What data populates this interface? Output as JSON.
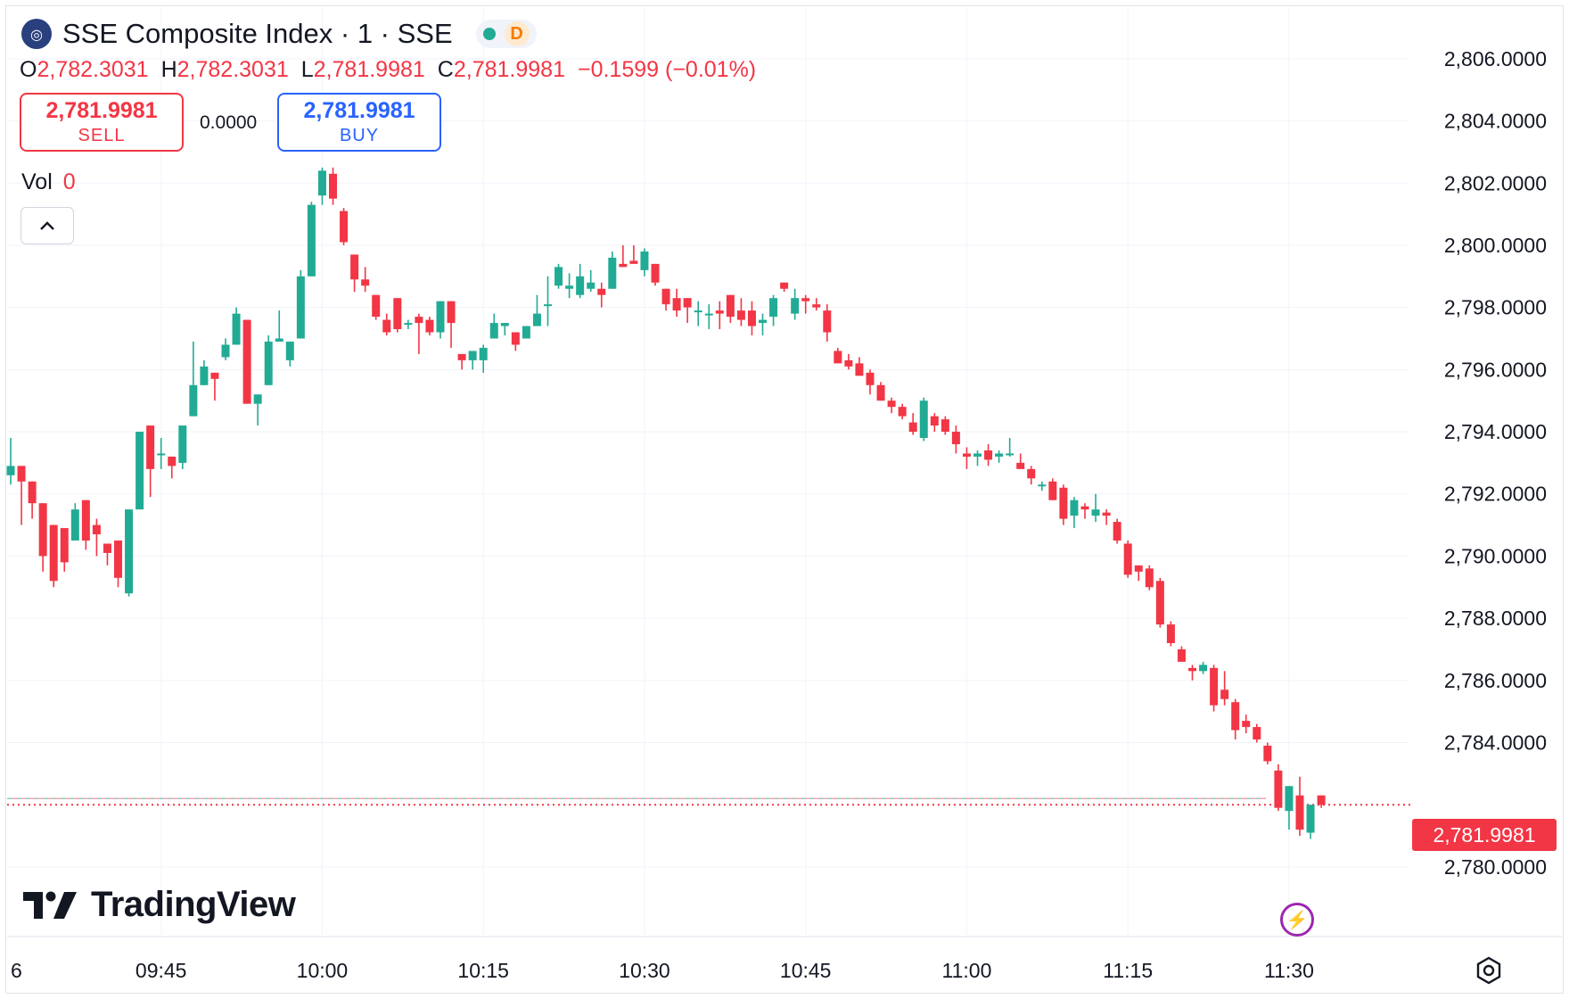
{
  "header": {
    "title": "SSE Composite Index · 1 · SSE",
    "logo_icon": "globe-icon",
    "delay_badge": "D",
    "status_color": "#22ab94"
  },
  "ohlc": {
    "open_label": "O",
    "open": "2,782.3031",
    "high_label": "H",
    "high": "2,782.3031",
    "low_label": "L",
    "low": "2,781.9981",
    "close_label": "C",
    "close": "2,781.9981",
    "change": "−0.1599 (−0.01%)"
  },
  "trade": {
    "sell_price": "2,781.9981",
    "sell_label": "SELL",
    "spread": "0.0000",
    "buy_price": "2,781.9981",
    "buy_label": "BUY"
  },
  "volume": {
    "label": "Vol",
    "value": "0"
  },
  "branding": {
    "name": "TradingView"
  },
  "colors": {
    "up": "#22ab94",
    "down": "#f23645",
    "grid": "#f0f3fa"
  },
  "chart_data": {
    "type": "candlestick",
    "current_price": 2781.9981,
    "current_price_label": "2,781.9981",
    "y_ticks": [
      "2,806.0000",
      "2,804.0000",
      "2,802.0000",
      "2,800.0000",
      "2,798.0000",
      "2,796.0000",
      "2,794.0000",
      "2,792.0000",
      "2,790.0000",
      "2,788.0000",
      "2,786.0000",
      "2,784.0000",
      "2,780.0000"
    ],
    "y_tick_values": [
      2806,
      2804,
      2802,
      2800,
      2798,
      2796,
      2794,
      2792,
      2790,
      2788,
      2786,
      2784,
      2780
    ],
    "x_ticks": [
      "6",
      "09:45",
      "10:00",
      "10:15",
      "10:30",
      "10:45",
      "11:00",
      "11:15",
      "11:30"
    ],
    "ylim": [
      2779.05,
      2806.8
    ],
    "candles": [
      {
        "t": "09:31",
        "o": 2792.6,
        "h": 2793.8,
        "l": 2792.3,
        "c": 2792.9
      },
      {
        "t": "09:32",
        "o": 2792.9,
        "h": 2792.9,
        "l": 2791.0,
        "c": 2792.4
      },
      {
        "t": "09:33",
        "o": 2792.4,
        "h": 2792.4,
        "l": 2791.2,
        "c": 2791.7
      },
      {
        "t": "09:34",
        "o": 2791.7,
        "h": 2791.7,
        "l": 2789.5,
        "c": 2790.0
      },
      {
        "t": "09:35",
        "o": 2791.0,
        "h": 2791.0,
        "l": 2789.0,
        "c": 2789.2
      },
      {
        "t": "09:36",
        "o": 2790.9,
        "h": 2790.9,
        "l": 2789.5,
        "c": 2789.8
      },
      {
        "t": "09:37",
        "o": 2790.5,
        "h": 2791.7,
        "l": 2790.5,
        "c": 2791.5
      },
      {
        "t": "09:38",
        "o": 2791.8,
        "h": 2791.8,
        "l": 2790.2,
        "c": 2790.5
      },
      {
        "t": "09:39",
        "o": 2791.0,
        "h": 2791.2,
        "l": 2790.0,
        "c": 2790.7
      },
      {
        "t": "09:40",
        "o": 2790.4,
        "h": 2790.4,
        "l": 2789.7,
        "c": 2790.1
      },
      {
        "t": "09:41",
        "o": 2790.5,
        "h": 2790.5,
        "l": 2789.0,
        "c": 2789.3
      },
      {
        "t": "09:42",
        "o": 2788.8,
        "h": 2791.5,
        "l": 2788.7,
        "c": 2791.5
      },
      {
        "t": "09:43",
        "o": 2791.5,
        "h": 2794.0,
        "l": 2791.5,
        "c": 2794.0
      },
      {
        "t": "09:44",
        "o": 2794.2,
        "h": 2794.2,
        "l": 2791.9,
        "c": 2792.8
      },
      {
        "t": "09:45",
        "o": 2793.3,
        "h": 2793.8,
        "l": 2792.8,
        "c": 2793.3
      },
      {
        "t": "09:46",
        "o": 2793.2,
        "h": 2793.2,
        "l": 2792.5,
        "c": 2792.9
      },
      {
        "t": "09:47",
        "o": 2793.0,
        "h": 2794.2,
        "l": 2792.8,
        "c": 2794.2
      },
      {
        "t": "09:48",
        "o": 2794.5,
        "h": 2796.9,
        "l": 2794.5,
        "c": 2795.5
      },
      {
        "t": "09:49",
        "o": 2795.5,
        "h": 2796.3,
        "l": 2795.5,
        "c": 2796.1
      },
      {
        "t": "09:50",
        "o": 2795.9,
        "h": 2795.9,
        "l": 2795.0,
        "c": 2795.7
      },
      {
        "t": "09:51",
        "o": 2796.4,
        "h": 2797.0,
        "l": 2796.3,
        "c": 2796.8
      },
      {
        "t": "09:52",
        "o": 2796.8,
        "h": 2798.0,
        "l": 2796.8,
        "c": 2797.8
      },
      {
        "t": "09:53",
        "o": 2797.6,
        "h": 2797.6,
        "l": 2794.9,
        "c": 2794.9
      },
      {
        "t": "09:54",
        "o": 2794.9,
        "h": 2795.2,
        "l": 2794.2,
        "c": 2795.2
      },
      {
        "t": "09:55",
        "o": 2795.5,
        "h": 2797.1,
        "l": 2795.5,
        "c": 2796.9
      },
      {
        "t": "09:56",
        "o": 2796.9,
        "h": 2797.9,
        "l": 2796.9,
        "c": 2797.0
      },
      {
        "t": "09:57",
        "o": 2796.3,
        "h": 2796.9,
        "l": 2796.1,
        "c": 2796.9
      },
      {
        "t": "09:58",
        "o": 2797.0,
        "h": 2799.2,
        "l": 2797.0,
        "c": 2799.0
      },
      {
        "t": "09:59",
        "o": 2799.0,
        "h": 2801.4,
        "l": 2799.0,
        "c": 2801.3
      },
      {
        "t": "10:00",
        "o": 2801.6,
        "h": 2802.5,
        "l": 2801.3,
        "c": 2802.4
      },
      {
        "t": "10:01",
        "o": 2802.3,
        "h": 2802.5,
        "l": 2801.3,
        "c": 2801.5
      },
      {
        "t": "10:02",
        "o": 2801.1,
        "h": 2801.2,
        "l": 2800.0,
        "c": 2800.1
      },
      {
        "t": "10:03",
        "o": 2799.7,
        "h": 2799.7,
        "l": 2798.5,
        "c": 2798.9
      },
      {
        "t": "10:04",
        "o": 2798.9,
        "h": 2799.3,
        "l": 2798.5,
        "c": 2798.7
      },
      {
        "t": "10:05",
        "o": 2798.4,
        "h": 2798.4,
        "l": 2797.6,
        "c": 2797.7
      },
      {
        "t": "10:06",
        "o": 2797.6,
        "h": 2797.8,
        "l": 2797.1,
        "c": 2797.2
      },
      {
        "t": "10:07",
        "o": 2798.3,
        "h": 2798.3,
        "l": 2797.2,
        "c": 2797.3
      },
      {
        "t": "10:08",
        "o": 2797.5,
        "h": 2797.6,
        "l": 2797.3,
        "c": 2797.5
      },
      {
        "t": "10:09",
        "o": 2797.7,
        "h": 2797.8,
        "l": 2796.5,
        "c": 2797.5
      },
      {
        "t": "10:10",
        "o": 2797.6,
        "h": 2797.7,
        "l": 2797.1,
        "c": 2797.2
      },
      {
        "t": "10:11",
        "o": 2797.2,
        "h": 2798.2,
        "l": 2797.0,
        "c": 2798.2
      },
      {
        "t": "10:12",
        "o": 2798.2,
        "h": 2798.2,
        "l": 2796.7,
        "c": 2797.5
      },
      {
        "t": "10:13",
        "o": 2796.5,
        "h": 2796.5,
        "l": 2796.0,
        "c": 2796.3
      },
      {
        "t": "10:14",
        "o": 2796.3,
        "h": 2796.5,
        "l": 2796.0,
        "c": 2796.6
      },
      {
        "t": "10:15",
        "o": 2796.3,
        "h": 2796.8,
        "l": 2795.9,
        "c": 2796.7
      },
      {
        "t": "10:16",
        "o": 2797.0,
        "h": 2797.8,
        "l": 2797.0,
        "c": 2797.5
      },
      {
        "t": "10:17",
        "o": 2797.4,
        "h": 2797.5,
        "l": 2797.1,
        "c": 2797.5
      },
      {
        "t": "10:18",
        "o": 2797.2,
        "h": 2797.2,
        "l": 2796.6,
        "c": 2796.8
      },
      {
        "t": "10:19",
        "o": 2797.0,
        "h": 2797.4,
        "l": 2797.0,
        "c": 2797.4
      },
      {
        "t": "10:20",
        "o": 2797.4,
        "h": 2798.4,
        "l": 2797.4,
        "c": 2797.8
      },
      {
        "t": "10:21",
        "o": 2798.1,
        "h": 2799.0,
        "l": 2797.4,
        "c": 2798.1
      },
      {
        "t": "10:22",
        "o": 2798.7,
        "h": 2799.4,
        "l": 2798.6,
        "c": 2799.3
      },
      {
        "t": "10:23",
        "o": 2798.6,
        "h": 2799.1,
        "l": 2798.3,
        "c": 2798.7
      },
      {
        "t": "10:24",
        "o": 2798.4,
        "h": 2799.4,
        "l": 2798.3,
        "c": 2799.0
      },
      {
        "t": "10:25",
        "o": 2798.6,
        "h": 2799.2,
        "l": 2798.5,
        "c": 2798.8
      },
      {
        "t": "10:26",
        "o": 2798.6,
        "h": 2798.8,
        "l": 2798.0,
        "c": 2798.4
      },
      {
        "t": "10:27",
        "o": 2798.6,
        "h": 2799.8,
        "l": 2798.6,
        "c": 2799.6
      },
      {
        "t": "10:28",
        "o": 2799.4,
        "h": 2800.0,
        "l": 2799.3,
        "c": 2799.3
      },
      {
        "t": "10:29",
        "o": 2799.5,
        "h": 2800.0,
        "l": 2799.5,
        "c": 2799.4
      },
      {
        "t": "10:30",
        "o": 2799.2,
        "h": 2799.9,
        "l": 2799.0,
        "c": 2799.8
      },
      {
        "t": "10:31",
        "o": 2799.4,
        "h": 2799.4,
        "l": 2798.7,
        "c": 2798.8
      },
      {
        "t": "10:32",
        "o": 2798.6,
        "h": 2798.6,
        "l": 2797.9,
        "c": 2798.1
      },
      {
        "t": "10:33",
        "o": 2798.3,
        "h": 2798.6,
        "l": 2797.7,
        "c": 2797.9
      },
      {
        "t": "10:34",
        "o": 2798.3,
        "h": 2798.3,
        "l": 2797.5,
        "c": 2798.0
      },
      {
        "t": "10:35",
        "o": 2797.9,
        "h": 2798.2,
        "l": 2797.4,
        "c": 2797.9
      },
      {
        "t": "10:36",
        "o": 2797.8,
        "h": 2798.1,
        "l": 2797.3,
        "c": 2797.8
      },
      {
        "t": "10:37",
        "o": 2797.9,
        "h": 2798.2,
        "l": 2797.3,
        "c": 2797.8
      },
      {
        "t": "10:38",
        "o": 2798.4,
        "h": 2798.4,
        "l": 2797.5,
        "c": 2797.7
      },
      {
        "t": "10:39",
        "o": 2797.9,
        "h": 2798.3,
        "l": 2797.4,
        "c": 2797.6
      },
      {
        "t": "10:40",
        "o": 2797.9,
        "h": 2798.2,
        "l": 2797.1,
        "c": 2797.4
      },
      {
        "t": "10:41",
        "o": 2797.5,
        "h": 2797.8,
        "l": 2797.1,
        "c": 2797.6
      },
      {
        "t": "10:42",
        "o": 2797.7,
        "h": 2798.4,
        "l": 2797.4,
        "c": 2798.3
      },
      {
        "t": "10:43",
        "o": 2798.8,
        "h": 2798.8,
        "l": 2798.5,
        "c": 2798.6
      },
      {
        "t": "10:44",
        "o": 2797.8,
        "h": 2798.6,
        "l": 2797.6,
        "c": 2798.3
      },
      {
        "t": "10:45",
        "o": 2798.3,
        "h": 2798.4,
        "l": 2797.8,
        "c": 2798.2
      },
      {
        "t": "10:46",
        "o": 2798.1,
        "h": 2798.3,
        "l": 2797.9,
        "c": 2798.0
      },
      {
        "t": "10:47",
        "o": 2797.9,
        "h": 2798.1,
        "l": 2796.9,
        "c": 2797.2
      },
      {
        "t": "10:48",
        "o": 2796.6,
        "h": 2796.7,
        "l": 2796.2,
        "c": 2796.2
      },
      {
        "t": "10:49",
        "o": 2796.3,
        "h": 2796.5,
        "l": 2796.0,
        "c": 2796.1
      },
      {
        "t": "10:50",
        "o": 2796.2,
        "h": 2796.4,
        "l": 2795.9,
        "c": 2795.8
      },
      {
        "t": "10:51",
        "o": 2795.9,
        "h": 2796.0,
        "l": 2795.2,
        "c": 2795.5
      },
      {
        "t": "10:52",
        "o": 2795.5,
        "h": 2795.6,
        "l": 2795.0,
        "c": 2795.0
      },
      {
        "t": "10:53",
        "o": 2795.0,
        "h": 2795.1,
        "l": 2794.6,
        "c": 2794.8
      },
      {
        "t": "10:54",
        "o": 2794.8,
        "h": 2794.9,
        "l": 2794.4,
        "c": 2794.5
      },
      {
        "t": "10:55",
        "o": 2794.3,
        "h": 2794.6,
        "l": 2793.9,
        "c": 2794.0
      },
      {
        "t": "10:56",
        "o": 2793.8,
        "h": 2795.1,
        "l": 2793.7,
        "c": 2795.0
      },
      {
        "t": "10:57",
        "o": 2794.5,
        "h": 2794.6,
        "l": 2794.0,
        "c": 2794.2
      },
      {
        "t": "10:58",
        "o": 2794.4,
        "h": 2794.5,
        "l": 2793.9,
        "c": 2794.0
      },
      {
        "t": "10:59",
        "o": 2794.0,
        "h": 2794.2,
        "l": 2793.3,
        "c": 2793.6
      },
      {
        "t": "11:00",
        "o": 2793.3,
        "h": 2793.5,
        "l": 2792.8,
        "c": 2793.2
      },
      {
        "t": "11:01",
        "o": 2793.2,
        "h": 2793.4,
        "l": 2792.9,
        "c": 2793.3
      },
      {
        "t": "11:02",
        "o": 2793.4,
        "h": 2793.6,
        "l": 2792.9,
        "c": 2793.1
      },
      {
        "t": "11:03",
        "o": 2793.2,
        "h": 2793.4,
        "l": 2793.0,
        "c": 2793.3
      },
      {
        "t": "11:04",
        "o": 2793.3,
        "h": 2793.8,
        "l": 2793.2,
        "c": 2793.3
      },
      {
        "t": "11:05",
        "o": 2793.0,
        "h": 2793.3,
        "l": 2792.9,
        "c": 2792.8
      },
      {
        "t": "11:06",
        "o": 2792.8,
        "h": 2792.9,
        "l": 2792.3,
        "c": 2792.5
      },
      {
        "t": "11:07",
        "o": 2792.3,
        "h": 2792.4,
        "l": 2792.1,
        "c": 2792.3
      },
      {
        "t": "11:08",
        "o": 2792.4,
        "h": 2792.5,
        "l": 2791.8,
        "c": 2791.8
      },
      {
        "t": "11:09",
        "o": 2792.2,
        "h": 2792.3,
        "l": 2791.0,
        "c": 2791.2
      },
      {
        "t": "11:10",
        "o": 2791.3,
        "h": 2791.9,
        "l": 2790.9,
        "c": 2791.8
      },
      {
        "t": "11:11",
        "o": 2791.6,
        "h": 2791.7,
        "l": 2791.2,
        "c": 2791.5
      },
      {
        "t": "11:12",
        "o": 2791.3,
        "h": 2792.0,
        "l": 2791.1,
        "c": 2791.5
      },
      {
        "t": "11:13",
        "o": 2791.4,
        "h": 2791.5,
        "l": 2791.0,
        "c": 2791.3
      },
      {
        "t": "11:14",
        "o": 2791.1,
        "h": 2791.2,
        "l": 2790.4,
        "c": 2790.5
      },
      {
        "t": "11:15",
        "o": 2790.4,
        "h": 2790.5,
        "l": 2789.3,
        "c": 2789.4
      },
      {
        "t": "11:16",
        "o": 2789.7,
        "h": 2789.7,
        "l": 2789.2,
        "c": 2789.5
      },
      {
        "t": "11:17",
        "o": 2789.6,
        "h": 2789.7,
        "l": 2788.9,
        "c": 2789.0
      },
      {
        "t": "11:18",
        "o": 2789.2,
        "h": 2789.3,
        "l": 2787.7,
        "c": 2787.8
      },
      {
        "t": "11:19",
        "o": 2787.8,
        "h": 2787.9,
        "l": 2787.1,
        "c": 2787.2
      },
      {
        "t": "11:20",
        "o": 2787.0,
        "h": 2787.1,
        "l": 2786.6,
        "c": 2786.6
      },
      {
        "t": "11:21",
        "o": 2786.4,
        "h": 2786.5,
        "l": 2786.0,
        "c": 2786.3
      },
      {
        "t": "11:22",
        "o": 2786.3,
        "h": 2786.6,
        "l": 2786.2,
        "c": 2786.5
      },
      {
        "t": "11:23",
        "o": 2786.4,
        "h": 2786.5,
        "l": 2785.0,
        "c": 2785.2
      },
      {
        "t": "11:24",
        "o": 2785.7,
        "h": 2786.3,
        "l": 2785.2,
        "c": 2785.4
      },
      {
        "t": "11:25",
        "o": 2785.3,
        "h": 2785.4,
        "l": 2784.1,
        "c": 2784.4
      },
      {
        "t": "11:26",
        "o": 2784.7,
        "h": 2784.9,
        "l": 2784.3,
        "c": 2784.5
      },
      {
        "t": "11:27",
        "o": 2784.5,
        "h": 2784.6,
        "l": 2784.0,
        "c": 2784.1
      },
      {
        "t": "11:28",
        "o": 2783.9,
        "h": 2784.0,
        "l": 2783.3,
        "c": 2783.4
      },
      {
        "t": "11:29",
        "o": 2783.1,
        "h": 2783.3,
        "l": 2781.8,
        "c": 2781.9
      },
      {
        "t": "11:30",
        "o": 2781.8,
        "h": 2782.6,
        "l": 2781.2,
        "c": 2782.6
      },
      {
        "t": "11:31",
        "o": 2782.3,
        "h": 2782.9,
        "l": 2781.0,
        "c": 2781.2
      },
      {
        "t": "11:32",
        "o": 2781.1,
        "h": 2782.0,
        "l": 2780.9,
        "c": 2782.0
      },
      {
        "t": "11:33",
        "o": 2782.3,
        "h": 2782.3,
        "l": 2781.9,
        "c": 2781.9981
      }
    ],
    "title": "SSE Composite Index · 1 · SSE",
    "grid": true
  }
}
